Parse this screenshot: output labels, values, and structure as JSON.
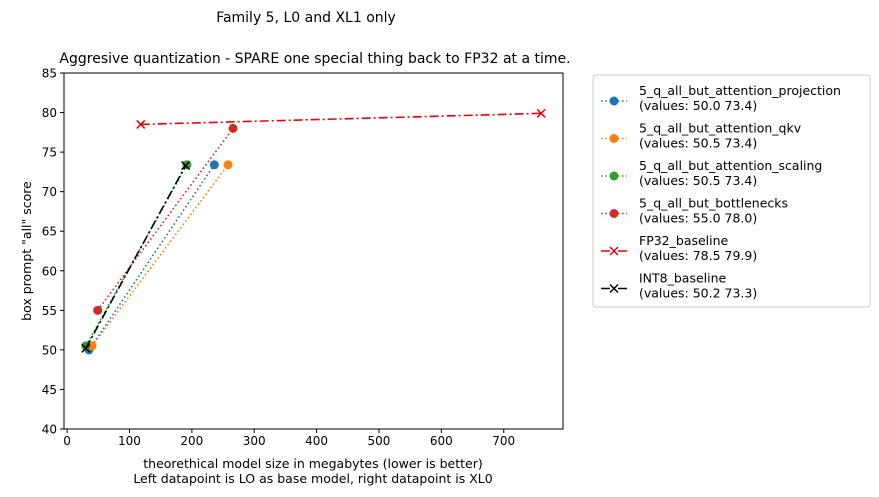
{
  "chart_data": {
    "type": "line",
    "suptitle": "Family 5, L0 and XL1 only",
    "title": "Aggresive quantization - SPARE one special thing back to FP32 at a time.",
    "xlabel_line1": "theorethical model size in megabytes (lower is better)",
    "xlabel_line2": "Left datapoint is LO as base model, right datapoint is XL0",
    "ylabel": "box prompt \"all\" score",
    "xlim": [
      -5,
      795
    ],
    "ylim": [
      40,
      85
    ],
    "xticks": [
      0,
      100,
      200,
      300,
      400,
      500,
      600,
      700
    ],
    "yticks": [
      40,
      45,
      50,
      55,
      60,
      65,
      70,
      75,
      80,
      85
    ],
    "grid": false,
    "legend_position": "outside-right",
    "series": [
      {
        "name": "5_q_all_but_attention_projection",
        "values_label": "(values: 50.0 73.4)",
        "color": "#1f77b4",
        "marker": "circle",
        "linestyle": "dotted",
        "points": [
          [
            35,
            50.0
          ],
          [
            236,
            73.4
          ]
        ]
      },
      {
        "name": "5_q_all_but_attention_qkv",
        "values_label": "(values: 50.5 73.4)",
        "color": "#ff7f0e",
        "marker": "circle",
        "linestyle": "dotted",
        "points": [
          [
            40,
            50.5
          ],
          [
            258,
            73.4
          ]
        ]
      },
      {
        "name": "5_q_all_but_attention_scaling",
        "values_label": "(values: 50.5 73.4)",
        "color": "#2ca02c",
        "marker": "circle",
        "linestyle": "dotted",
        "points": [
          [
            30,
            50.5
          ],
          [
            192,
            73.4
          ]
        ]
      },
      {
        "name": "5_q_all_but_bottlenecks",
        "values_label": "(values: 55.0 78.0)",
        "color": "#d62728",
        "marker": "circle",
        "linestyle": "dotted",
        "points": [
          [
            49,
            55.0
          ],
          [
            266,
            78.0
          ]
        ]
      },
      {
        "name": "FP32_baseline",
        "values_label": "(values: 78.5 79.9)",
        "color": "#e8000b",
        "marker": "x",
        "linestyle": "dashdot",
        "points": [
          [
            118,
            78.5
          ],
          [
            760,
            79.9
          ]
        ]
      },
      {
        "name": "INT8_baseline",
        "values_label": "(values: 50.2 73.3)",
        "color": "#000000",
        "marker": "x",
        "linestyle": "dashdot",
        "points": [
          [
            30,
            50.2
          ],
          [
            190,
            73.3
          ]
        ]
      }
    ]
  }
}
